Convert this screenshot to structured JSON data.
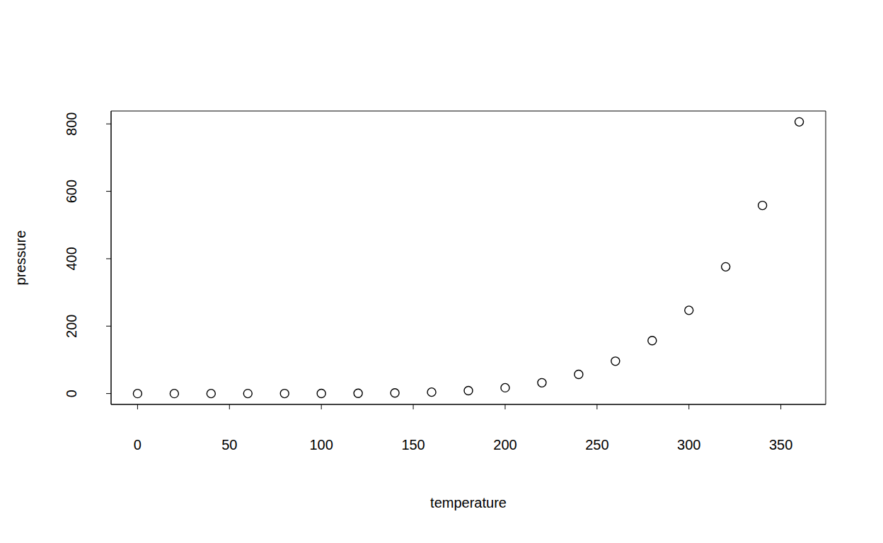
{
  "chart_data": {
    "type": "scatter",
    "x_label": "temperature",
    "y_label": "pressure",
    "x": [
      0,
      20,
      40,
      60,
      80,
      100,
      120,
      140,
      160,
      180,
      200,
      220,
      240,
      260,
      280,
      300,
      320,
      340,
      360
    ],
    "values": [
      0.0002,
      0.0012,
      0.006,
      0.03,
      0.09,
      0.27,
      0.75,
      1.85,
      4.2,
      8.8,
      17.3,
      32.1,
      57,
      96,
      157,
      247,
      376,
      558,
      806
    ],
    "color": "#000000",
    "marker": "open_circle",
    "xlim": [
      -14.4,
      374.4
    ],
    "ylim": [
      -32.24,
      838.24
    ],
    "xticks": [
      0,
      50,
      100,
      150,
      200,
      250,
      300,
      350
    ],
    "yticks": [
      0,
      200,
      400,
      600,
      800
    ],
    "grid": false
  }
}
